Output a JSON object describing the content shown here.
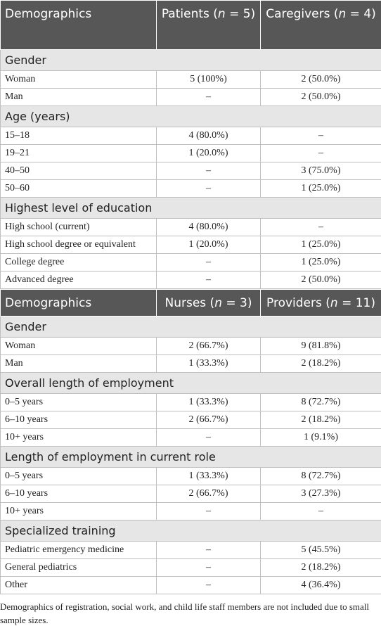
{
  "tables": [
    {
      "header": [
        [
          "Demographics"
        ],
        [
          "Patients (",
          "n",
          " = 5)"
        ],
        [
          "Caregivers (",
          "n",
          " = 4)"
        ]
      ],
      "sections": [
        {
          "title": "Gender",
          "rows": [
            [
              "Woman",
              "5 (100%)",
              "2 (50.0%)"
            ],
            [
              "Man",
              "–",
              "2 (50.0%)"
            ]
          ]
        },
        {
          "title": "Age (years)",
          "rows": [
            [
              "15–18",
              "4 (80.0%)",
              "–"
            ],
            [
              "19–21",
              "1 (20.0%)",
              "–"
            ],
            [
              "40–50",
              "–",
              "3 (75.0%)"
            ],
            [
              "50–60",
              "–",
              "1 (25.0%)"
            ]
          ]
        },
        {
          "title": "Highest level of education",
          "rows": [
            [
              "High school (current)",
              "4 (80.0%)",
              "–"
            ],
            [
              "High school degree or equivalent",
              "1 (20.0%)",
              "1 (25.0%)"
            ],
            [
              "College degree",
              "–",
              "1 (25.0%)"
            ],
            [
              "Advanced degree",
              "–",
              "2 (50.0%)"
            ]
          ]
        }
      ]
    },
    {
      "header": [
        [
          "Demographics"
        ],
        [
          "Nurses (",
          "n",
          " = 3)"
        ],
        [
          "Providers (",
          "n",
          " = 11)"
        ]
      ],
      "sections": [
        {
          "title": "Gender",
          "rows": [
            [
              "Woman",
              "2 (66.7%)",
              "9 (81.8%)"
            ],
            [
              "Man",
              "1 (33.3%)",
              "2 (18.2%)"
            ]
          ]
        },
        {
          "title": "Overall length of employment",
          "rows": [
            [
              "0–5 years",
              "1 (33.3%)",
              "8 (72.7%)"
            ],
            [
              "6–10 years",
              "2 (66.7%)",
              "2 (18.2%)"
            ],
            [
              "10+ years",
              "–",
              "1 (9.1%)"
            ]
          ]
        },
        {
          "title": "Length of employment in current role",
          "rows": [
            [
              "0–5 years",
              "1 (33.3%)",
              "8 (72.7%)"
            ],
            [
              "6–10 years",
              "2 (66.7%)",
              "3 (27.3%)"
            ],
            [
              "10+ years",
              "–",
              "–"
            ]
          ]
        },
        {
          "title": "Specialized training",
          "rows": [
            [
              "Pediatric emergency medicine",
              "–",
              "5 (45.5%)"
            ],
            [
              "General pediatrics",
              "–",
              "2 (18.2%)"
            ],
            [
              "Other",
              "–",
              "4 (36.4%)"
            ]
          ]
        }
      ]
    }
  ],
  "footnote": "Demographics of registration, social work, and child life staff members are not included due to small sample sizes."
}
